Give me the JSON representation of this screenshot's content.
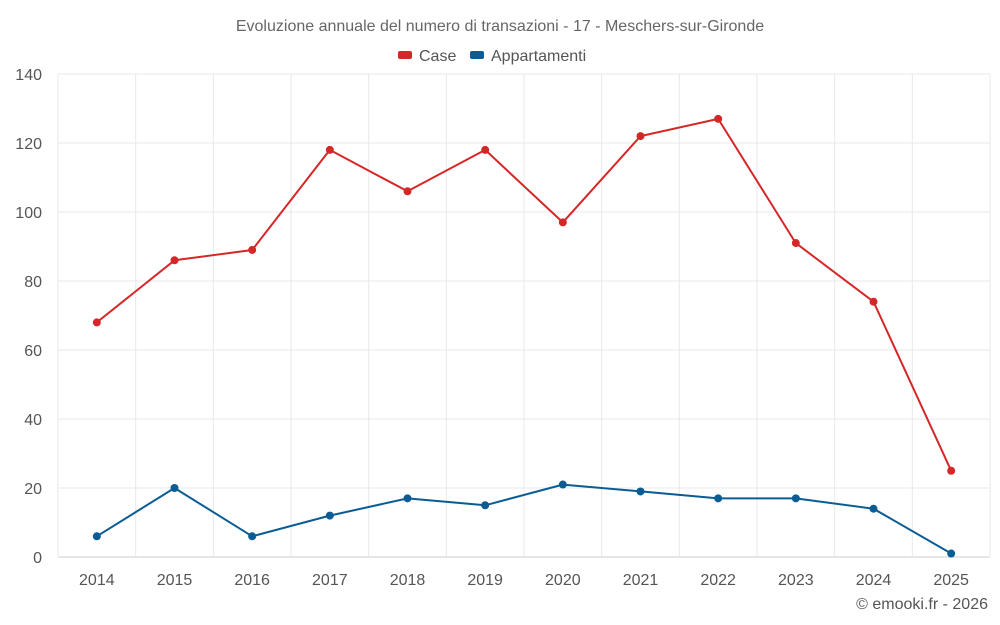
{
  "chart_data": {
    "type": "line",
    "title": "Evoluzione annuale del numero di transazioni - 17 - Meschers-sur-Gironde",
    "categories": [
      "2014",
      "2015",
      "2016",
      "2017",
      "2018",
      "2019",
      "2020",
      "2021",
      "2022",
      "2023",
      "2024",
      "2025"
    ],
    "series": [
      {
        "name": "Case",
        "color": "#d62728",
        "values": [
          68,
          86,
          89,
          118,
          106,
          118,
          97,
          122,
          127,
          91,
          74,
          25
        ]
      },
      {
        "name": "Appartamenti",
        "color": "#0a5c94",
        "values": [
          6,
          20,
          6,
          12,
          17,
          15,
          21,
          19,
          17,
          17,
          14,
          1
        ]
      }
    ],
    "ylim": [
      0,
      140
    ],
    "yticks": [
      "0",
      "20",
      "40",
      "60",
      "80",
      "100",
      "120",
      "140"
    ],
    "xlabel": "",
    "ylabel": "",
    "grid": true,
    "legend_position": "top-center"
  },
  "credit": "© emooki.fr - 2026"
}
